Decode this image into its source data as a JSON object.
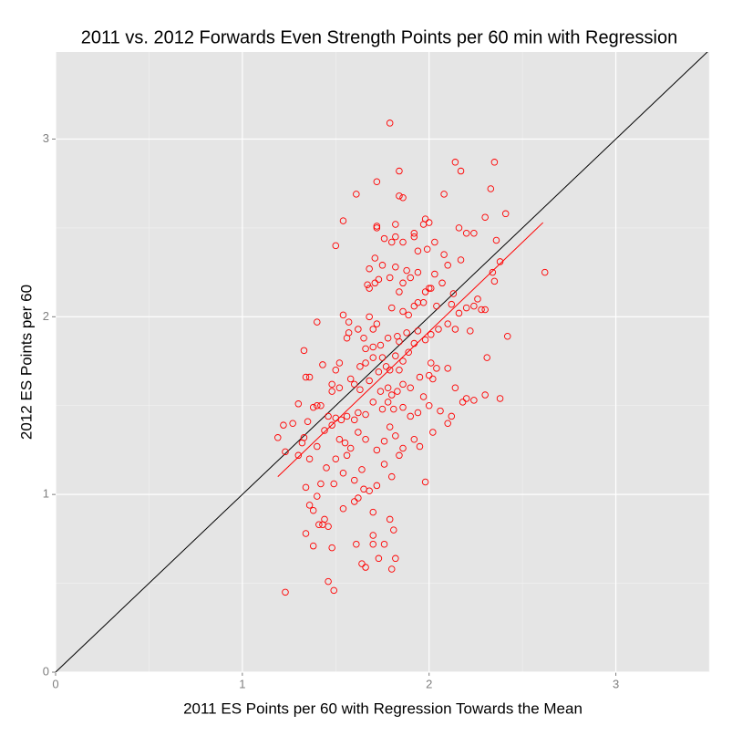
{
  "chart_data": {
    "type": "scatter",
    "title": "2011 vs. 2012  Forwards Even Strength Points per 60 min with Regression",
    "x_label": "2011 ES Points per 60 with Regression Towards the Mean",
    "y_label": "2012 ES Points per 60",
    "xlim": [
      0,
      3.5
    ],
    "ylim": [
      0,
      3.49
    ],
    "xticks": [
      0,
      1,
      2,
      3
    ],
    "yticks": [
      0,
      1,
      2,
      3
    ],
    "minor_xticks": [
      0.5,
      1.5,
      2.5,
      3.5
    ],
    "minor_yticks": [
      0.5,
      1.5,
      2.5
    ],
    "grid": true,
    "color": "#ff0000",
    "x": [
      1.79,
      2.14,
      2.35,
      2.17,
      1.84,
      1.61,
      1.72,
      2.33,
      2.08,
      1.84,
      1.86,
      1.54,
      1.72,
      1.72,
      1.5,
      1.98,
      2.0,
      1.97,
      2.16,
      2.2,
      2.24,
      2.3,
      2.41,
      2.36,
      1.82,
      1.76,
      1.8,
      1.82,
      1.86,
      1.92,
      1.94,
      1.92,
      1.99,
      2.03,
      2.08,
      2.1,
      2.17,
      2.03,
      2.34,
      2.35,
      2.38,
      2.62,
      1.71,
      1.68,
      1.73,
      1.71,
      1.75,
      1.79,
      1.82,
      1.67,
      1.68,
      1.86,
      1.88,
      1.9,
      1.94,
      2.0,
      2.01,
      1.98,
      2.07,
      2.13,
      2.12,
      2.2,
      2.24,
      2.26,
      2.28,
      2.16,
      2.14,
      2.22,
      2.3,
      2.42,
      2.1,
      2.04,
      1.97,
      1.94,
      1.92,
      1.89,
      1.86,
      1.8,
      1.84,
      1.72,
      1.7,
      1.68,
      1.62,
      1.57,
      1.54,
      1.57,
      1.56,
      1.4,
      1.65,
      1.66,
      1.7,
      1.74,
      1.75,
      1.78,
      1.83,
      1.84,
      1.88,
      1.92,
      1.94,
      1.98,
      2.05,
      2.01,
      1.89,
      1.86,
      1.82,
      1.84,
      1.79,
      1.77,
      1.73,
      1.7,
      1.66,
      1.63,
      1.58,
      1.52,
      1.5,
      1.48,
      1.43,
      1.36,
      1.34,
      1.33,
      1.48,
      1.52,
      1.6,
      1.63,
      1.68,
      1.74,
      1.78,
      1.8,
      1.83,
      1.86,
      1.9,
      1.95,
      2.0,
      2.02,
      2.04,
      2.01,
      2.1,
      2.31,
      2.14,
      2.18,
      2.2,
      2.24,
      2.3,
      2.38,
      2.12,
      2.1,
      2.06,
      2.0,
      1.97,
      1.94,
      1.9,
      1.86,
      1.81,
      1.78,
      1.75,
      1.7,
      1.66,
      1.62,
      1.6,
      1.56,
      1.53,
      1.5,
      1.46,
      1.42,
      1.4,
      1.38,
      1.3,
      1.35,
      1.27,
      1.22,
      1.19,
      1.32,
      1.33,
      1.3,
      1.23,
      1.4,
      1.44,
      1.48,
      1.52,
      1.55,
      1.58,
      1.62,
      1.66,
      1.72,
      1.76,
      1.79,
      1.82,
      1.86,
      1.92,
      1.95,
      2.02,
      1.56,
      1.5,
      1.45,
      1.42,
      1.49,
      1.54,
      1.6,
      1.64,
      1.68,
      1.65,
      1.62,
      1.6,
      1.54,
      1.36,
      1.38,
      1.4,
      1.34,
      1.36,
      1.7,
      1.72,
      1.76,
      1.8,
      1.84,
      1.98,
      1.79,
      1.81,
      1.76,
      1.7,
      1.7,
      1.61,
      1.41,
      1.43,
      1.44,
      1.46,
      1.34,
      1.38,
      1.48,
      1.64,
      1.66,
      1.73,
      1.8,
      1.82,
      1.46,
      1.49,
      1.23
    ],
    "values": [
      3.09,
      2.87,
      2.87,
      2.82,
      2.82,
      2.69,
      2.76,
      2.72,
      2.69,
      2.68,
      2.67,
      2.54,
      2.51,
      2.5,
      2.4,
      2.55,
      2.53,
      2.52,
      2.5,
      2.47,
      2.47,
      2.56,
      2.58,
      2.43,
      2.52,
      2.44,
      2.42,
      2.45,
      2.42,
      2.45,
      2.37,
      2.47,
      2.38,
      2.42,
      2.35,
      2.29,
      2.32,
      2.24,
      2.25,
      2.2,
      2.31,
      2.25,
      2.33,
      2.27,
      2.21,
      2.19,
      2.29,
      2.22,
      2.28,
      2.18,
      2.16,
      2.19,
      2.26,
      2.22,
      2.25,
      2.16,
      2.16,
      2.14,
      2.19,
      2.13,
      2.07,
      2.05,
      2.06,
      2.1,
      2.04,
      2.02,
      1.93,
      1.92,
      2.04,
      1.89,
      1.96,
      2.06,
      2.08,
      2.08,
      2.06,
      2.01,
      2.03,
      2.05,
      2.14,
      1.96,
      1.93,
      2.0,
      1.93,
      1.97,
      2.01,
      1.91,
      1.88,
      1.97,
      1.88,
      1.82,
      1.83,
      1.84,
      1.77,
      1.88,
      1.89,
      1.86,
      1.91,
      1.85,
      1.92,
      1.87,
      1.93,
      1.9,
      1.8,
      1.75,
      1.78,
      1.7,
      1.7,
      1.72,
      1.69,
      1.77,
      1.74,
      1.72,
      1.65,
      1.74,
      1.7,
      1.62,
      1.73,
      1.66,
      1.66,
      1.81,
      1.58,
      1.6,
      1.62,
      1.59,
      1.64,
      1.58,
      1.6,
      1.56,
      1.58,
      1.62,
      1.6,
      1.66,
      1.67,
      1.65,
      1.71,
      1.74,
      1.71,
      1.77,
      1.6,
      1.52,
      1.54,
      1.53,
      1.56,
      1.54,
      1.44,
      1.4,
      1.47,
      1.5,
      1.55,
      1.46,
      1.44,
      1.49,
      1.48,
      1.52,
      1.48,
      1.52,
      1.45,
      1.46,
      1.42,
      1.44,
      1.42,
      1.43,
      1.44,
      1.5,
      1.5,
      1.49,
      1.51,
      1.41,
      1.4,
      1.39,
      1.32,
      1.29,
      1.32,
      1.22,
      1.24,
      1.27,
      1.36,
      1.39,
      1.31,
      1.29,
      1.26,
      1.35,
      1.31,
      1.25,
      1.3,
      1.38,
      1.33,
      1.26,
      1.31,
      1.27,
      1.35,
      1.22,
      1.2,
      1.15,
      1.06,
      1.06,
      1.12,
      1.08,
      1.14,
      1.02,
      1.03,
      0.98,
      0.96,
      0.92,
      0.94,
      0.91,
      0.99,
      1.04,
      1.2,
      0.9,
      1.05,
      1.17,
      1.1,
      1.22,
      1.07,
      0.86,
      0.8,
      0.72,
      0.77,
      0.72,
      0.72,
      0.83,
      0.83,
      0.86,
      0.82,
      0.78,
      0.71,
      0.7,
      0.61,
      0.59,
      0.64,
      0.58,
      0.64,
      0.51,
      0.46,
      0.45
    ],
    "lines": [
      {
        "x": [
          0,
          3.5
        ],
        "values": [
          0,
          3.5
        ],
        "color": "#000000"
      },
      {
        "x": [
          1.19,
          2.61
        ],
        "values": [
          1.1,
          2.53
        ],
        "color": "#ff0000"
      }
    ]
  }
}
